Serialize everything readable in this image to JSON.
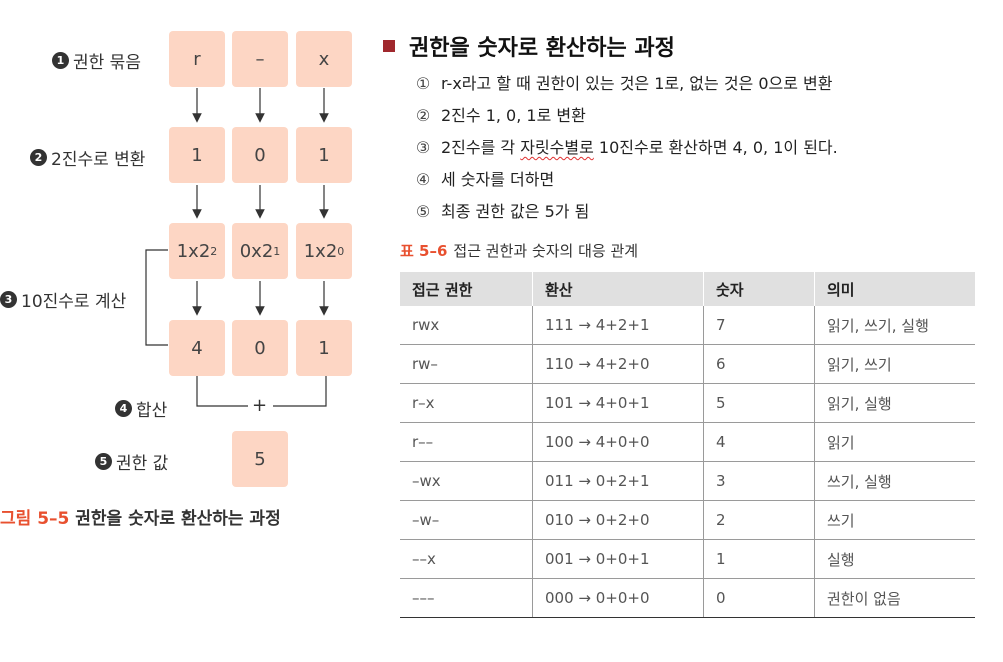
{
  "figure": {
    "steps": [
      {
        "num": "1",
        "label": "권한 묶음"
      },
      {
        "num": "2",
        "label": "2진수로 변환"
      },
      {
        "num": "3",
        "label": "10진수로 계산"
      },
      {
        "num": "4",
        "label": "합산"
      },
      {
        "num": "5",
        "label": "권한 값"
      }
    ],
    "row_perm": [
      "r",
      "–",
      "x"
    ],
    "row_binary": [
      "1",
      "0",
      "1"
    ],
    "row_power": [
      {
        "base": "1x2",
        "exp": "2"
      },
      {
        "base": "0x2",
        "exp": "1"
      },
      {
        "base": "1x2",
        "exp": "0"
      }
    ],
    "row_decimal": [
      "4",
      "0",
      "1"
    ],
    "plus_sign": "+",
    "result": "5",
    "caption_num": "그림 5–5",
    "caption_text": "권한을 숫자로 환산하는 과정",
    "box_color": "#fdd6c4"
  },
  "panel": {
    "heading": "권한을 숫자로 환산하는 과정",
    "bullet_color": "#a0282d",
    "steps": [
      {
        "marker": "①",
        "text": "r-x라고 할 때 권한이 있는 것은 1로, 없는 것은 0으로 변환"
      },
      {
        "marker": "②",
        "text": "2진수 1, 0, 1로 변환"
      },
      {
        "marker": "③",
        "text_before": "2진수를 각 ",
        "text_underlined": "자릿수별로",
        "text_after": " 10진수로 환산하면 4, 0, 1이 된다."
      },
      {
        "marker": "④",
        "text": "세 숫자를 더하면"
      },
      {
        "marker": "⑤",
        "text": "최종 권한 값은  5가 됨"
      }
    ]
  },
  "table": {
    "caption_num": "표 5–6",
    "caption_text": "접근 권한과 숫자의 대응 관계",
    "headers": [
      "접근 권한",
      "환산",
      "숫자",
      "의미"
    ],
    "rows": [
      [
        "rwx",
        "111 → 4+2+1",
        "7",
        "읽기, 쓰기, 실행"
      ],
      [
        "rw–",
        "110 → 4+2+0",
        "6",
        "읽기, 쓰기"
      ],
      [
        "r–x",
        "101 → 4+0+1",
        "5",
        "읽기, 실행"
      ],
      [
        "r––",
        "100 → 4+0+0",
        "4",
        "읽기"
      ],
      [
        "–wx",
        "011 → 0+2+1",
        "3",
        "쓰기, 실행"
      ],
      [
        "–w–",
        "010 → 0+2+0",
        "2",
        "쓰기"
      ],
      [
        "––x",
        "001 → 0+0+1",
        "1",
        "실행"
      ],
      [
        "–––",
        "000 → 0+0+0",
        "0",
        "권한이 없음"
      ]
    ],
    "header_bg": "#e0e0e0"
  }
}
